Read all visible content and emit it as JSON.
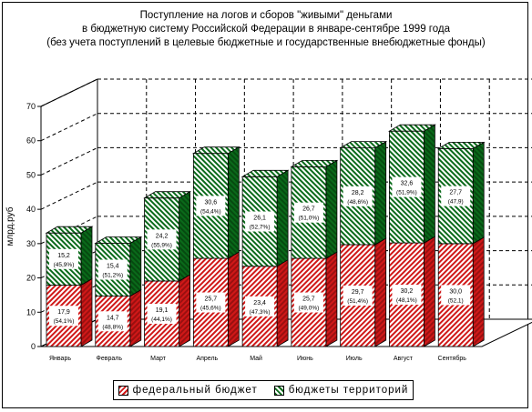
{
  "title": {
    "line1": "Поступление на логов и сборов \"живыми\" деньгами",
    "line2": "в бюджетную систему Российской Федерации в январе-сентябре 1999 года",
    "line3": "(без учета поступлений в целевые бюджетные и государственные внебюджетные фонды)"
  },
  "chart_data": {
    "type": "bar",
    "stacked": true,
    "three_d": true,
    "categories": [
      "Январь",
      "Февраль",
      "Март",
      "Апрель",
      "Май",
      "Июнь",
      "Июль",
      "Август",
      "Сентябрь"
    ],
    "series": [
      {
        "name": "федеральный бюджет",
        "values": [
          17.9,
          14.7,
          19.1,
          25.7,
          23.4,
          25.7,
          29.7,
          30.2,
          30.0
        ],
        "labels": [
          "17,9",
          "14,7",
          "19,1",
          "25,7",
          "23,4",
          "25,7",
          "29,7",
          "30,2",
          "30,0"
        ],
        "shares": [
          "(54,1%)",
          "(48,8%)",
          "(44,1%)",
          "(45,6%)",
          "(47,3%)",
          "(49,0%)",
          "(51,4%)",
          "(48,1%)",
          "(52,1)"
        ],
        "color": "#d01818"
      },
      {
        "name": "бюджеты территорий",
        "values": [
          15.2,
          15.4,
          24.2,
          30.6,
          26.1,
          26.7,
          28.2,
          32.6,
          27.7
        ],
        "labels": [
          "15,2",
          "15,4",
          "24,2",
          "30,6",
          "26,1",
          "26,7",
          "28,2",
          "32,6",
          "27,7"
        ],
        "shares": [
          "(45,9%)",
          "(51,2%)",
          "(55,9%)",
          "(54,4%)",
          "(52,7%)",
          "(51,0%)",
          "(48,6%)",
          "(51,9%)",
          "(47,9)"
        ],
        "color": "#0a6a1a"
      }
    ],
    "ylabel": "млрд.руб",
    "ylim": [
      0,
      70
    ],
    "yticks": [
      "0",
      "10",
      "20",
      "30",
      "40",
      "50",
      "60",
      "70"
    ],
    "grid": true,
    "legend": "bottom"
  }
}
